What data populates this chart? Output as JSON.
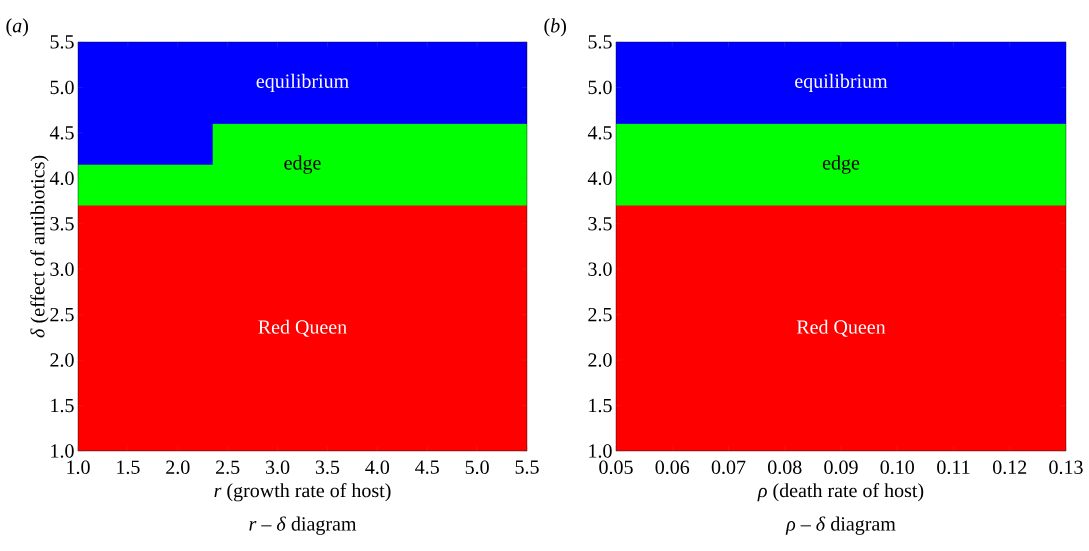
{
  "chart_data": [
    {
      "type": "area",
      "title": "(*a*)",
      "xlabel": "*r* (growth rate of host)",
      "ylabel": "*δ* (effect of antibiotics)",
      "series": [
        {
          "name": "equilibrium",
          "color": "#0000ff",
          "x": [
            1.0,
            5.5
          ],
          "values": [
            5.5,
            5.5
          ]
        },
        {
          "name": "edge",
          "color": "#00ff00",
          "x": [
            1.0,
            2.35,
            2.35,
            5.5
          ],
          "values": [
            4.15,
            4.15,
            4.6,
            4.6
          ]
        },
        {
          "name": "Red Queen",
          "color": "#ff0000",
          "x": [
            1.0,
            5.5
          ],
          "values": [
            3.7,
            3.7
          ]
        }
      ],
      "xlim": [
        1.0,
        5.5
      ],
      "ylim": [
        1.0,
        5.5
      ],
      "xticks": [
        {
          "value": 1.0,
          "label": "1.0"
        },
        {
          "value": 1.5,
          "label": "1.5"
        },
        {
          "value": 2.0,
          "label": "2.0"
        },
        {
          "value": 2.5,
          "label": "2.5"
        },
        {
          "value": 3.0,
          "label": "3.0"
        },
        {
          "value": 3.5,
          "label": "3.5"
        },
        {
          "value": 4.0,
          "label": "4.0"
        },
        {
          "value": 4.5,
          "label": "4.5"
        },
        {
          "value": 5.0,
          "label": "5.0"
        },
        {
          "value": 5.5,
          "label": "5.5"
        }
      ],
      "yticks": [
        {
          "value": 1.0,
          "label": "1.0"
        },
        {
          "value": 1.5,
          "label": "1.5"
        },
        {
          "value": 2.0,
          "label": "2.0"
        },
        {
          "value": 2.5,
          "label": "2.5"
        },
        {
          "value": 3.0,
          "label": "3.0"
        },
        {
          "value": 3.5,
          "label": "3.5"
        },
        {
          "value": 4.0,
          "label": "4.0"
        },
        {
          "value": 4.5,
          "label": "4.5"
        },
        {
          "value": 5.0,
          "label": "5.0"
        },
        {
          "value": 5.5,
          "label": "5.5"
        }
      ],
      "annotations": [
        "*r* – *δ* diagram"
      ]
    },
    {
      "type": "area",
      "title": "(*b*)",
      "xlabel": "*ρ* (death rate of host)",
      "series": [
        {
          "name": "equilibrium",
          "color": "#0000ff",
          "x": [
            0.05,
            0.13
          ],
          "values": [
            5.5,
            5.5
          ]
        },
        {
          "name": "edge",
          "color": "#00ff00",
          "x": [
            0.05,
            0.13
          ],
          "values": [
            4.6,
            4.6
          ]
        },
        {
          "name": "Red Queen",
          "color": "#ff0000",
          "x": [
            0.05,
            0.13
          ],
          "values": [
            3.7,
            3.7
          ]
        }
      ],
      "xlim": [
        0.05,
        0.13
      ],
      "ylim": [
        1.0,
        5.5
      ],
      "xticks": [
        {
          "value": 0.05,
          "label": "0.05"
        },
        {
          "value": 0.06,
          "label": "0.06"
        },
        {
          "value": 0.07,
          "label": "0.07"
        },
        {
          "value": 0.08,
          "label": "0.08"
        },
        {
          "value": 0.09,
          "label": "0.09"
        },
        {
          "value": 0.1,
          "label": "0.10"
        },
        {
          "value": 0.11,
          "label": "0.11"
        },
        {
          "value": 0.12,
          "label": "0.12"
        },
        {
          "value": 0.13,
          "label": "0.13"
        }
      ],
      "yticks": [
        {
          "value": 1.0,
          "label": "1.0"
        },
        {
          "value": 1.5,
          "label": "1.5"
        },
        {
          "value": 2.0,
          "label": "2.0"
        },
        {
          "value": 2.5,
          "label": "2.5"
        },
        {
          "value": 3.0,
          "label": "3.0"
        },
        {
          "value": 3.5,
          "label": "3.5"
        },
        {
          "value": 4.0,
          "label": "4.0"
        },
        {
          "value": 4.5,
          "label": "4.5"
        },
        {
          "value": 5.0,
          "label": "5.0"
        },
        {
          "value": 5.5,
          "label": "5.5"
        }
      ],
      "annotations": [
        "*ρ* – *δ* diagram"
      ]
    }
  ]
}
